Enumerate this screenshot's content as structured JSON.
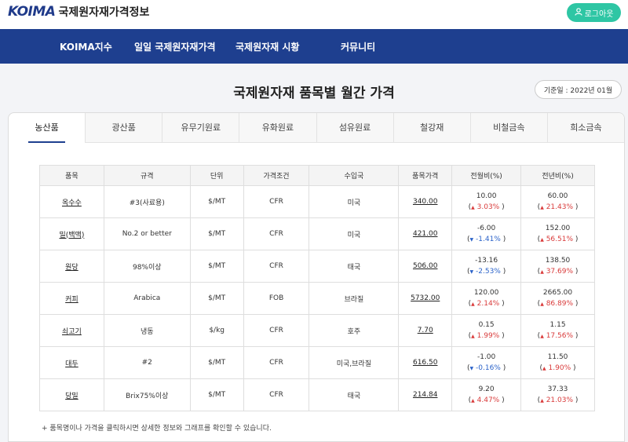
{
  "header": {
    "logo_mark": "KOIMA",
    "site_name": "국제원자재가격정보",
    "login_label": "로그아웃"
  },
  "nav": [
    "KOIMA지수",
    "일일 국제원자재가격",
    "국제원자재 시황",
    "커뮤니티"
  ],
  "page": {
    "title": "국제원자재 품목별 월간 가격",
    "base_date": "기준일 : 2022년 01월"
  },
  "tabs": [
    "농산품",
    "광산품",
    "유무기원료",
    "유화원료",
    "섬유원료",
    "철강재",
    "비철금속",
    "희소금속"
  ],
  "active_tab": 0,
  "table": {
    "headers": [
      "품목",
      "규격",
      "단위",
      "가격조건",
      "수입국",
      "품목가격",
      "전월비(%)",
      "전년비(%)"
    ],
    "rows": [
      {
        "item": "옥수수",
        "spec": "#3(사료용)",
        "unit": "$/MT",
        "terms": "CFR",
        "country": "미국",
        "price": "340.00",
        "mom": "10.00",
        "mom_pct": "3.03%",
        "mom_dir": "up",
        "yoy": "60.00",
        "yoy_pct": "21.43%",
        "yoy_dir": "up"
      },
      {
        "item": "밀(백맥)",
        "spec": "No.2 or better",
        "unit": "$/MT",
        "terms": "CFR",
        "country": "미국",
        "price": "421.00",
        "mom": "-6.00",
        "mom_pct": "-1.41%",
        "mom_dir": "down",
        "yoy": "152.00",
        "yoy_pct": "56.51%",
        "yoy_dir": "up"
      },
      {
        "item": "원당",
        "spec": "98%이상",
        "unit": "$/MT",
        "terms": "CFR",
        "country": "태국",
        "price": "506.00",
        "mom": "-13.16",
        "mom_pct": "-2.53%",
        "mom_dir": "down",
        "yoy": "138.50",
        "yoy_pct": "37.69%",
        "yoy_dir": "up"
      },
      {
        "item": "커피",
        "spec": "Arabica",
        "unit": "$/MT",
        "terms": "FOB",
        "country": "브라질",
        "price": "5732.00",
        "mom": "120.00",
        "mom_pct": "2.14%",
        "mom_dir": "up",
        "yoy": "2665.00",
        "yoy_pct": "86.89%",
        "yoy_dir": "up"
      },
      {
        "item": "쇠고기",
        "spec": "냉동",
        "unit": "$/kg",
        "terms": "CFR",
        "country": "호주",
        "price": "7.70",
        "mom": "0.15",
        "mom_pct": "1.99%",
        "mom_dir": "up",
        "yoy": "1.15",
        "yoy_pct": "17.56%",
        "yoy_dir": "up"
      },
      {
        "item": "대두",
        "spec": "#2",
        "unit": "$/MT",
        "terms": "CFR",
        "country": "미국,브라질",
        "price": "616.50",
        "mom": "-1.00",
        "mom_pct": "-0.16%",
        "mom_dir": "down",
        "yoy": "11.50",
        "yoy_pct": "1.90%",
        "yoy_dir": "up"
      },
      {
        "item": "당밀",
        "spec": "Brix75%이상",
        "unit": "$/MT",
        "terms": "CFR",
        "country": "태국",
        "price": "214.84",
        "mom": "9.20",
        "mom_pct": "4.47%",
        "mom_dir": "up",
        "yoy": "37.33",
        "yoy_pct": "21.03%",
        "yoy_dir": "up"
      }
    ]
  },
  "footnote": "+ 품목명이나 가격을 클릭하시면 상세한 정보와 그래프를 확인할 수 있습니다.",
  "colors": {
    "nav": "#1e3f8f",
    "login": "#2ec6a4",
    "up": "#d93a3a",
    "down": "#2a62c9"
  }
}
